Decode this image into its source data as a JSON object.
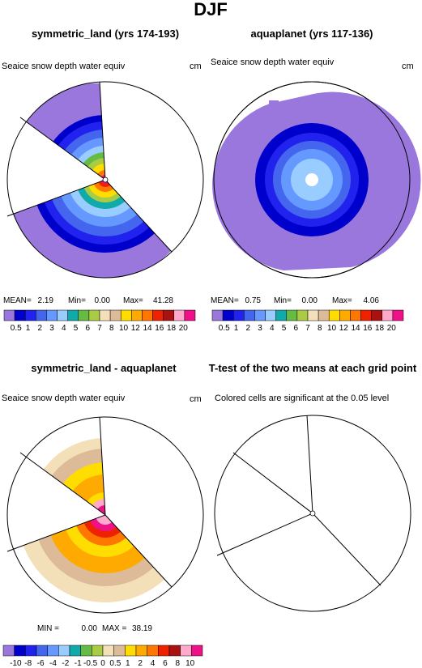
{
  "page_title": "DJF",
  "colors": {
    "dark_blue": "#0000cc",
    "mid_blue": "#2222ee",
    "blue": "#4466ee",
    "light_blue": "#6699ff",
    "pale_blue": "#99ccff",
    "lavender": "#9977dd",
    "teal": "#11aaaa",
    "green": "#66bb44",
    "lime": "#aacc44",
    "tan": "#ddbb99",
    "cream": "#f4e0b8",
    "yellow": "#ffdd00",
    "gold": "#ffaa00",
    "orange": "#ff7700",
    "red": "#ee2200",
    "dark_red": "#aa1111",
    "pink": "#ffaacc",
    "magenta": "#ee1188"
  },
  "chart_data": [
    {
      "type": "polar-map",
      "title": "symmetric_land (yrs 174-193)",
      "left_label": "Seaice snow depth water equiv",
      "right_label": "cm",
      "stats_text": {
        "mean_label": "MEAN=",
        "mean": "2.19",
        "min_label": "Min=",
        "min": "0.00",
        "max_label": "Max=",
        "max": "41.28"
      },
      "levels": [
        "0.5",
        "1",
        "2",
        "3",
        "4",
        "5",
        "6",
        "7",
        "8",
        "10",
        "12",
        "14",
        "16",
        "18",
        "20"
      ],
      "level_colors": [
        "#9977dd",
        "#0000cc",
        "#2222ee",
        "#4466ee",
        "#6699ff",
        "#99ccff",
        "#11aaaa",
        "#66bb44",
        "#aacc44",
        "#f4e0b8",
        "#ddbb99",
        "#ffdd00",
        "#ffaa00",
        "#ff7700",
        "#ee2200",
        "#aa1111",
        "#ffaacc",
        "#ee1188"
      ]
    },
    {
      "type": "polar-map",
      "title": "aquaplanet (yrs 117-136)",
      "left_label": "Seaice snow depth water equiv",
      "right_label": "cm",
      "stats_text": {
        "mean_label": "MEAN=",
        "mean": "0.75",
        "min_label": "Min=",
        "min": "0.00",
        "max_label": "Max=",
        "max": "4.06"
      },
      "levels": [
        "0.5",
        "1",
        "2",
        "3",
        "4",
        "5",
        "6",
        "7",
        "8",
        "10",
        "12",
        "14",
        "16",
        "18",
        "20"
      ],
      "level_colors": [
        "#9977dd",
        "#0000cc",
        "#2222ee",
        "#4466ee",
        "#6699ff",
        "#99ccff",
        "#11aaaa",
        "#66bb44",
        "#aacc44",
        "#f4e0b8",
        "#ddbb99",
        "#ffdd00",
        "#ffaa00",
        "#ff7700",
        "#ee2200",
        "#aa1111",
        "#ffaacc",
        "#ee1188"
      ]
    },
    {
      "type": "polar-map",
      "title": "symmetric_land - aquaplanet",
      "left_label": "Seaice snow depth water equiv",
      "right_label": "cm",
      "stats_text": {
        "min_label": "MIN =",
        "min": "0.00",
        "max_label": "MAX =",
        "max": "38.19"
      },
      "levels": [
        "-10",
        "-8",
        "-6",
        "-4",
        "-2",
        "-1",
        "-0.5",
        "0",
        "0.5",
        "1",
        "2",
        "4",
        "6",
        "8",
        "10"
      ],
      "level_colors": [
        "#9977dd",
        "#0000cc",
        "#2222ee",
        "#4466ee",
        "#6699ff",
        "#99ccff",
        "#11aaaa",
        "#66bb44",
        "#aacc44",
        "#f4e0b8",
        "#ddbb99",
        "#ffdd00",
        "#ffaa00",
        "#ff7700",
        "#ee2200",
        "#aa1111",
        "#ffaacc",
        "#ee1188"
      ]
    },
    {
      "type": "polar-map",
      "title": "T-test of the two means at each grid point",
      "left_label": "Colored cells are significant at the 0.05 level"
    }
  ]
}
